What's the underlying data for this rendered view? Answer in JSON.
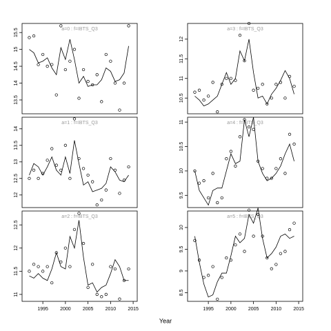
{
  "xlabel": "Year",
  "chart_data": [
    {
      "type": "scatter",
      "title": "a=0 : f=IBTS_Q3",
      "xlim": [
        1990.4,
        2015.9
      ],
      "ylim": [
        13.09,
        15.77
      ],
      "yticks": [
        13.5,
        14.0,
        14.5,
        15.0,
        15.5
      ],
      "x": [
        1992,
        1993,
        1994,
        1995,
        1996,
        1997,
        1998,
        1999,
        2000,
        2001,
        2002,
        2003,
        2004,
        2005,
        2006,
        2007,
        2008,
        2009,
        2010,
        2011,
        2012,
        2013,
        2014
      ],
      "values": [
        15.35,
        15.4,
        14.55,
        14.85,
        14.5,
        14.55,
        13.65,
        15.7,
        14.4,
        14.65,
        15.0,
        13.55,
        14.4,
        14.05,
        13.95,
        14.25,
        13.45,
        14.85,
        14.65,
        14.0,
        13.2,
        14.0,
        15.7
      ],
      "line_values": [
        15.0,
        14.9,
        14.6,
        14.65,
        14.75,
        14.45,
        14.25,
        15.05,
        14.7,
        15.3,
        14.7,
        14.0,
        14.2,
        13.9,
        13.95,
        13.95,
        14.1,
        14.45,
        14.35,
        14.05,
        14.1,
        14.3,
        15.1
      ]
    },
    {
      "type": "scatter",
      "title": "a=3 : f=IBTS_Q3",
      "xlim": [
        1990.4,
        2015.9
      ],
      "ylim": [
        10.1,
        12.4
      ],
      "yticks": [
        10.5,
        11.0,
        11.5,
        12.0
      ],
      "x": [
        1992,
        1993,
        1994,
        1995,
        1996,
        1997,
        1998,
        1999,
        2000,
        2001,
        2002,
        2003,
        2004,
        2005,
        2006,
        2007,
        2008,
        2009,
        2010,
        2011,
        2012,
        2013,
        2014
      ],
      "values": [
        10.65,
        10.7,
        10.45,
        10.55,
        10.9,
        10.15,
        10.85,
        11.0,
        11.0,
        10.95,
        12.1,
        11.45,
        12.4,
        10.7,
        10.75,
        10.85,
        10.35,
        10.5,
        10.85,
        10.9,
        10.5,
        11.05,
        10.8
      ],
      "line_values": [
        10.55,
        10.45,
        10.3,
        10.35,
        10.45,
        10.55,
        10.85,
        11.15,
        10.85,
        11.0,
        11.7,
        11.45,
        12.0,
        11.15,
        10.5,
        10.55,
        10.35,
        10.6,
        10.75,
        10.95,
        11.2,
        11.0,
        10.6
      ]
    },
    {
      "type": "scatter",
      "title": "a=1 : f=IBTS_Q3",
      "xlim": [
        1990.4,
        2015.9
      ],
      "ylim": [
        11.62,
        14.35
      ],
      "yticks": [
        12.0,
        12.5,
        13.0,
        13.5,
        14.0
      ],
      "x": [
        1992,
        1993,
        1994,
        1995,
        1996,
        1997,
        1998,
        1999,
        2000,
        2001,
        2002,
        2003,
        2004,
        2005,
        2006,
        2007,
        2008,
        2009,
        2010,
        2011,
        2012,
        2013,
        2014
      ],
      "values": [
        12.5,
        12.75,
        12.5,
        12.65,
        13.05,
        13.4,
        12.9,
        12.75,
        13.5,
        12.5,
        14.3,
        13.1,
        12.8,
        12.6,
        12.4,
        11.7,
        11.85,
        12.15,
        13.1,
        12.75,
        12.05,
        12.45,
        12.85
      ],
      "line_values": [
        12.6,
        12.95,
        12.85,
        12.6,
        12.85,
        13.15,
        12.75,
        12.6,
        13.15,
        12.65,
        13.65,
        12.95,
        12.3,
        12.4,
        12.1,
        12.15,
        12.2,
        12.35,
        12.85,
        12.7,
        12.45,
        12.4,
        12.6
      ]
    },
    {
      "type": "scatter",
      "title": "a=4 : f=IBTS_Q3",
      "xlim": [
        1990.4,
        2015.9
      ],
      "ylim": [
        9.25,
        11.1
      ],
      "yticks": [
        9.5,
        10.0,
        10.5,
        11.0
      ],
      "x": [
        1992,
        1993,
        1994,
        1995,
        1996,
        1997,
        1998,
        1999,
        2000,
        2001,
        2002,
        2003,
        2004,
        2005,
        2006,
        2007,
        2008,
        2009,
        2010,
        2011,
        2012,
        2013,
        2014
      ],
      "values": [
        10.0,
        9.75,
        9.8,
        9.45,
        9.95,
        9.35,
        9.45,
        10.25,
        10.4,
        10.1,
        10.7,
        11.05,
        10.9,
        10.85,
        10.2,
        10.05,
        9.85,
        9.85,
        10.05,
        10.25,
        9.95,
        10.75,
        10.55
      ],
      "line_values": [
        10.0,
        9.6,
        9.45,
        9.3,
        9.6,
        9.65,
        9.65,
        10.0,
        10.35,
        10.15,
        10.2,
        11.05,
        10.7,
        11.1,
        10.2,
        9.95,
        9.8,
        9.85,
        9.95,
        10.1,
        10.35,
        10.55,
        10.2
      ]
    },
    {
      "type": "scatter",
      "title": "a=2 : f=IBTS_Q3",
      "xlim": [
        1990.4,
        2015.9
      ],
      "ylim": [
        10.85,
        12.8
      ],
      "yticks": [
        11.0,
        11.5,
        12.0,
        12.5
      ],
      "xticks": [
        1995,
        2000,
        2005,
        2010,
        2015
      ],
      "x": [
        1992,
        1993,
        1994,
        1995,
        1996,
        1997,
        1998,
        1999,
        2000,
        2001,
        2002,
        2003,
        2004,
        2005,
        2006,
        2007,
        2008,
        2009,
        2010,
        2011,
        2012,
        2013,
        2014
      ],
      "values": [
        11.5,
        11.65,
        11.6,
        11.5,
        11.6,
        11.25,
        11.9,
        11.7,
        12.0,
        11.6,
        12.4,
        12.75,
        12.1,
        11.15,
        11.65,
        11.0,
        10.95,
        11.0,
        11.6,
        11.55,
        10.9,
        11.3,
        11.55
      ],
      "line_values": [
        11.4,
        11.35,
        11.45,
        11.35,
        11.3,
        11.55,
        11.9,
        11.6,
        11.55,
        12.25,
        12.0,
        12.6,
        11.8,
        11.2,
        11.25,
        11.05,
        11.15,
        11.2,
        11.45,
        11.75,
        11.6,
        11.3,
        11.3
      ]
    },
    {
      "type": "scatter",
      "title": "a=5 : f=IBTS_Q3",
      "xlim": [
        1990.4,
        2015.9
      ],
      "ylim": [
        8.3,
        10.38
      ],
      "yticks": [
        8.5,
        9.0,
        9.5,
        10.0
      ],
      "xticks": [
        1995,
        2000,
        2005,
        2010,
        2015
      ],
      "x": [
        1992,
        1993,
        1994,
        1995,
        1996,
        1997,
        1998,
        1999,
        2000,
        2001,
        2002,
        2003,
        2004,
        2005,
        2006,
        2007,
        2008,
        2009,
        2010,
        2011,
        2012,
        2013,
        2014
      ],
      "values": [
        9.7,
        9.25,
        8.85,
        8.9,
        9.1,
        8.35,
        8.85,
        9.3,
        9.25,
        9.6,
        9.85,
        9.45,
        10.4,
        9.8,
        10.3,
        9.8,
        9.3,
        9.05,
        9.15,
        9.4,
        9.45,
        9.95,
        10.1
      ],
      "line_values": [
        9.8,
        9.2,
        8.7,
        8.4,
        8.45,
        8.75,
        8.95,
        8.95,
        9.35,
        9.8,
        9.65,
        9.75,
        10.3,
        10.1,
        10.45,
        9.75,
        9.3,
        9.4,
        9.55,
        9.8,
        9.85,
        9.75,
        9.8
      ]
    }
  ]
}
